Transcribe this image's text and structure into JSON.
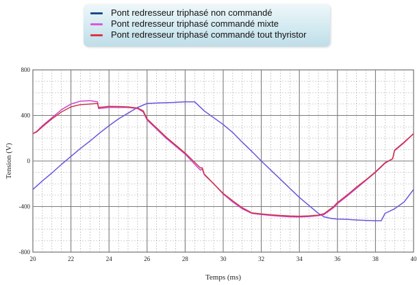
{
  "chart_data": {
    "type": "line",
    "xlabel": "Temps (ms)",
    "ylabel": "Tension (V)",
    "xlim": [
      20,
      40
    ],
    "ylim": [
      -800,
      800
    ],
    "x_ticks": [
      "20",
      "22",
      "24",
      "26",
      "28",
      "30",
      "32",
      "34",
      "36",
      "38",
      "40"
    ],
    "y_ticks": [
      "800",
      "400",
      "0",
      "-400",
      "-800"
    ],
    "grid": true,
    "legend_position": "top-center",
    "series": [
      {
        "name": "Pont redresseur triphasé non commandé",
        "color": "#6655dd",
        "x": [
          20,
          20.5,
          21,
          21.5,
          22,
          22.5,
          23,
          23.5,
          24,
          24.5,
          25,
          25.5,
          26,
          26.6,
          27,
          27.5,
          28,
          28.5,
          29,
          29.5,
          30,
          30.5,
          31,
          31.5,
          32,
          32.5,
          33,
          33.5,
          34,
          34.5,
          35,
          35.3,
          35.7,
          36,
          36.5,
          37,
          37.5,
          38,
          38.3,
          38.5,
          39,
          39.5,
          40
        ],
        "y": [
          -250,
          -175,
          -105,
          -30,
          40,
          110,
          175,
          245,
          310,
          370,
          420,
          470,
          505,
          510,
          512,
          515,
          520,
          520,
          440,
          380,
          320,
          250,
          165,
          85,
          0,
          -80,
          -160,
          -240,
          -320,
          -390,
          -460,
          -490,
          -505,
          -510,
          -512,
          -518,
          -522,
          -525,
          -525,
          -460,
          -420,
          -360,
          -250
        ]
      },
      {
        "name": "Pont redresseur triphasé commandé mixte",
        "color": "#cc44cc",
        "x": [
          20,
          20.2,
          20.5,
          21,
          21.5,
          22,
          22.5,
          23,
          23.4,
          23.45,
          24,
          24.5,
          25,
          25.5,
          25.8,
          26,
          26.5,
          27,
          28,
          28.8,
          28.9,
          29,
          29.5,
          30,
          30.5,
          31,
          31.5,
          32,
          32.5,
          33,
          33.5,
          34,
          34.5,
          35,
          35.3,
          35.8,
          36,
          36.5,
          37,
          37.5,
          38,
          38.5,
          38.9,
          39,
          39.5,
          40
        ],
        "y": [
          240,
          260,
          310,
          380,
          450,
          500,
          525,
          530,
          520,
          460,
          470,
          470,
          470,
          460,
          430,
          360,
          280,
          200,
          60,
          -80,
          -70,
          -120,
          -200,
          -290,
          -360,
          -420,
          -460,
          -470,
          -478,
          -485,
          -490,
          -492,
          -488,
          -480,
          -470,
          -410,
          -375,
          -310,
          -240,
          -170,
          -100,
          -20,
          20,
          90,
          160,
          240
        ]
      },
      {
        "name": "Pont redresseur triphasé commandé tout thyristor",
        "color": "#cc3344",
        "x": [
          20,
          20.2,
          20.5,
          21,
          21.5,
          22,
          22.5,
          23,
          23.4,
          23.45,
          24,
          24.5,
          25,
          25.5,
          25.8,
          26,
          26.5,
          27,
          28,
          28.8,
          28.9,
          29,
          29.5,
          30,
          30.5,
          31,
          31.5,
          32,
          32.5,
          33,
          33.5,
          34,
          34.5,
          35,
          35.3,
          35.8,
          36,
          36.5,
          37,
          37.5,
          38,
          38.5,
          38.9,
          39,
          39.5,
          40
        ],
        "y": [
          240,
          255,
          300,
          370,
          430,
          475,
          495,
          500,
          505,
          470,
          480,
          478,
          475,
          465,
          440,
          370,
          290,
          210,
          70,
          -60,
          -60,
          -115,
          -200,
          -285,
          -350,
          -410,
          -455,
          -465,
          -472,
          -478,
          -483,
          -485,
          -482,
          -475,
          -462,
          -400,
          -365,
          -300,
          -230,
          -165,
          -95,
          -15,
          20,
          95,
          165,
          240
        ]
      }
    ]
  }
}
